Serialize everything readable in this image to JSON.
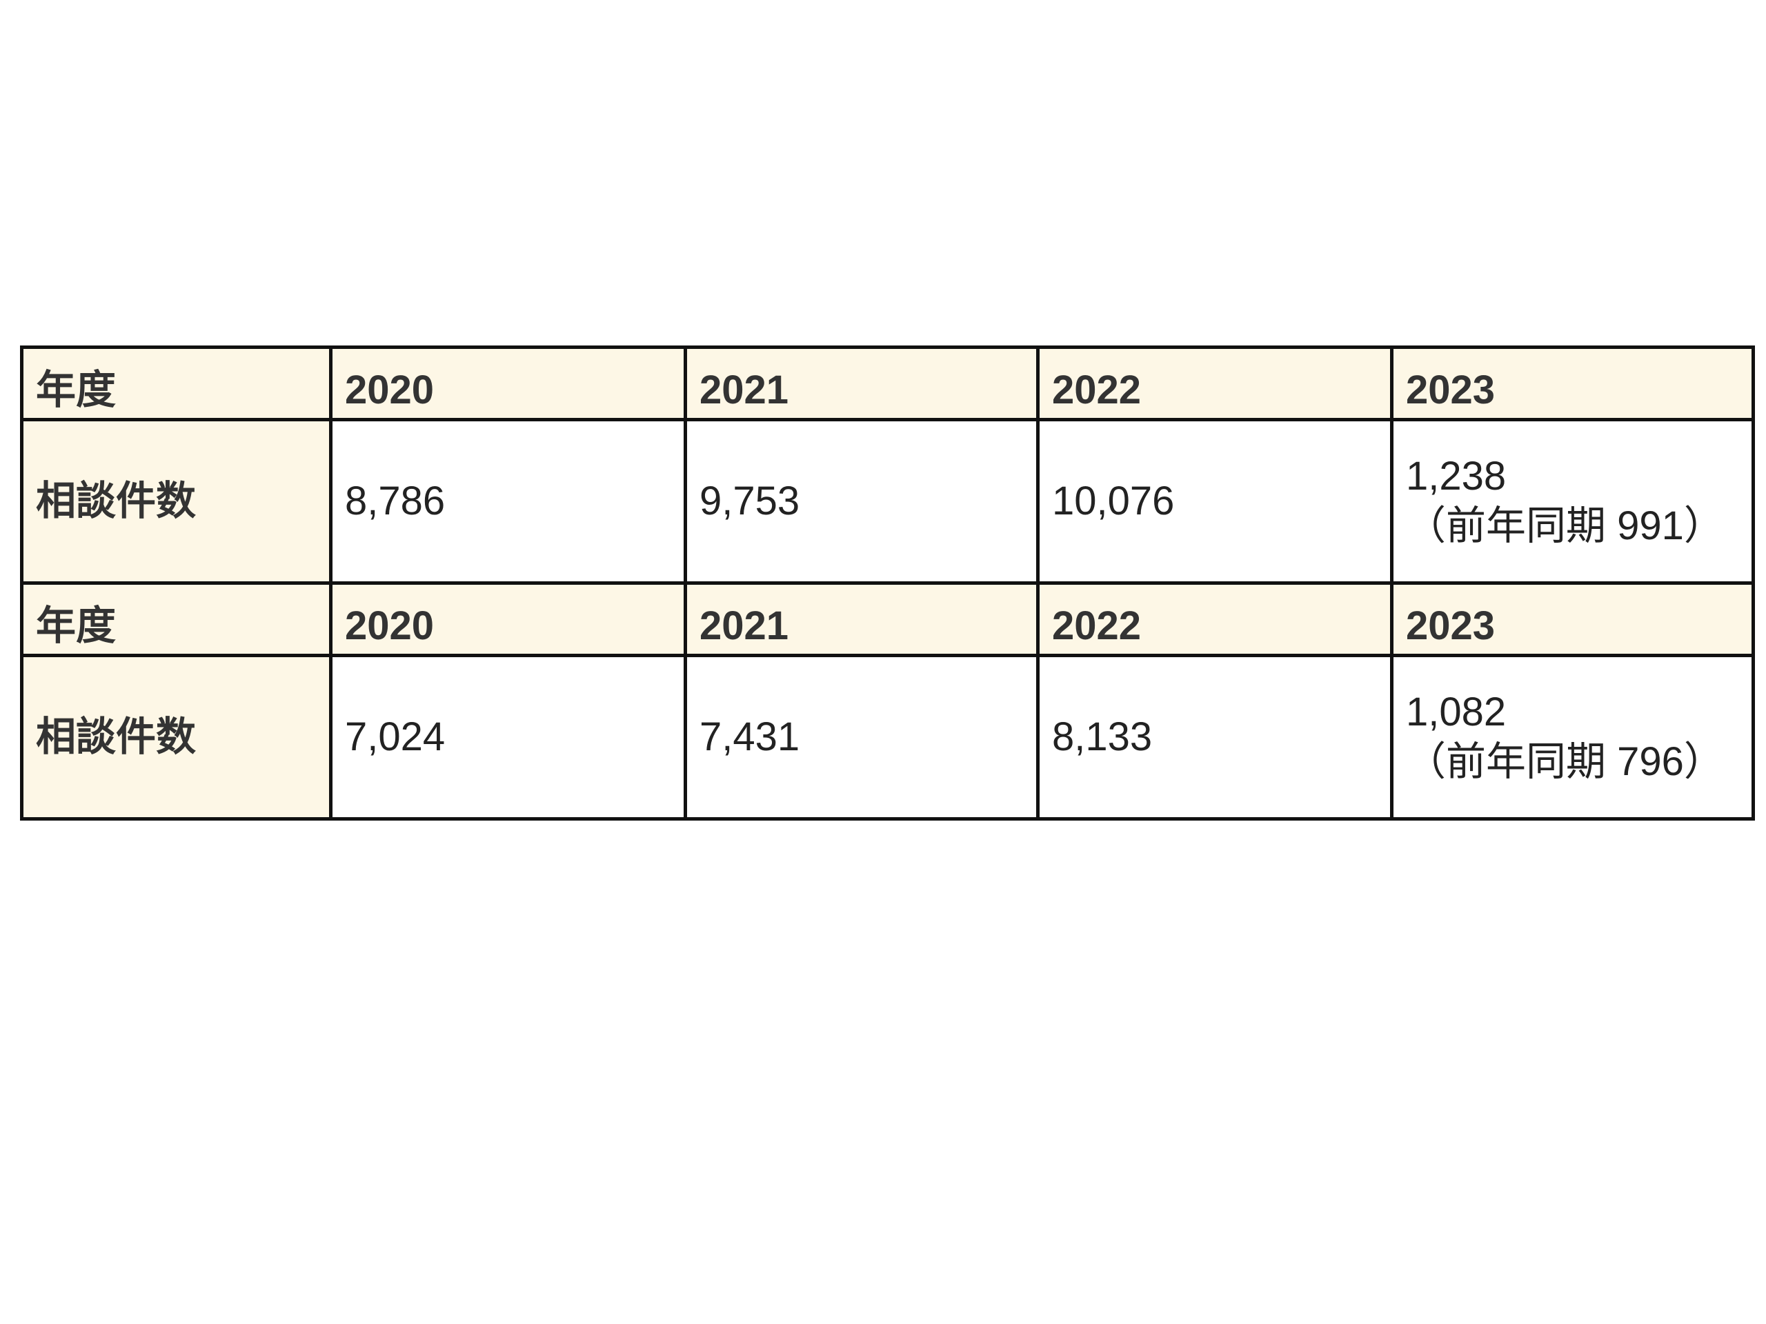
{
  "table": {
    "rows": [
      [
        "年度",
        "2020",
        "2021",
        "2022",
        "2023"
      ],
      [
        "相談件数",
        "8,786",
        "9,753",
        "10,076",
        [
          "1,238",
          "（前年同期 991）"
        ]
      ],
      [
        "年度",
        "2020",
        "2021",
        "2022",
        "2023"
      ],
      [
        "相談件数",
        "7,024",
        "7,431",
        "8,133",
        [
          "1,082",
          "（前年同期 796）"
        ]
      ]
    ]
  }
}
